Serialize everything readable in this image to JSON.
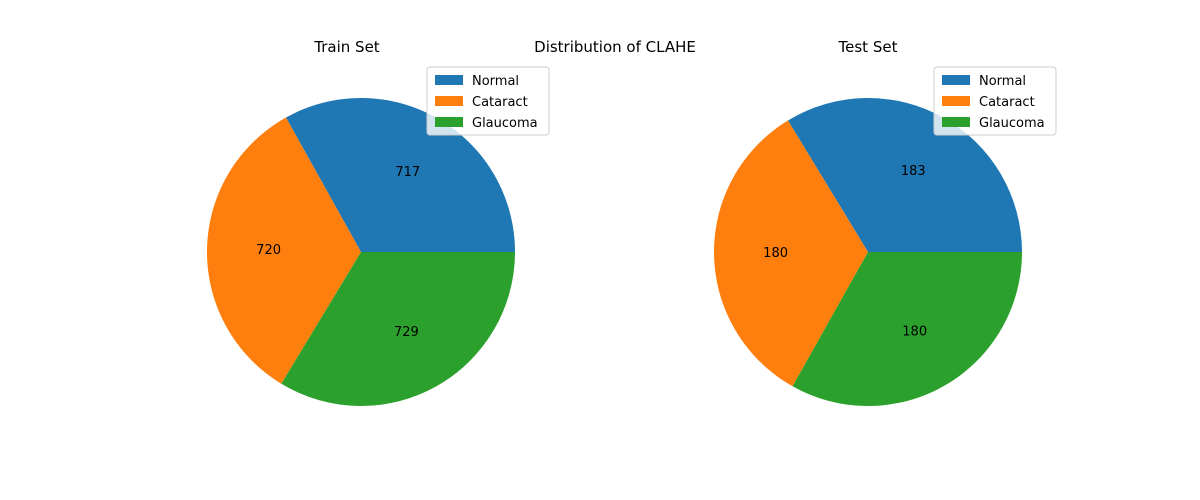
{
  "figure": {
    "suptitle": "Distribution of CLAHE"
  },
  "colors": {
    "Normal": "#1f77b4",
    "Cataract": "#ff7f0e",
    "Glaucoma": "#2ca02c"
  },
  "chart_data": [
    {
      "type": "pie",
      "title": "Train Set",
      "labels": [
        "Normal",
        "Cataract",
        "Glaucoma"
      ],
      "values": [
        717,
        720,
        729
      ],
      "legend": "top-right"
    },
    {
      "type": "pie",
      "title": "Test Set",
      "labels": [
        "Normal",
        "Cataract",
        "Glaucoma"
      ],
      "values": [
        183,
        180,
        180
      ],
      "legend": "top-right"
    }
  ]
}
